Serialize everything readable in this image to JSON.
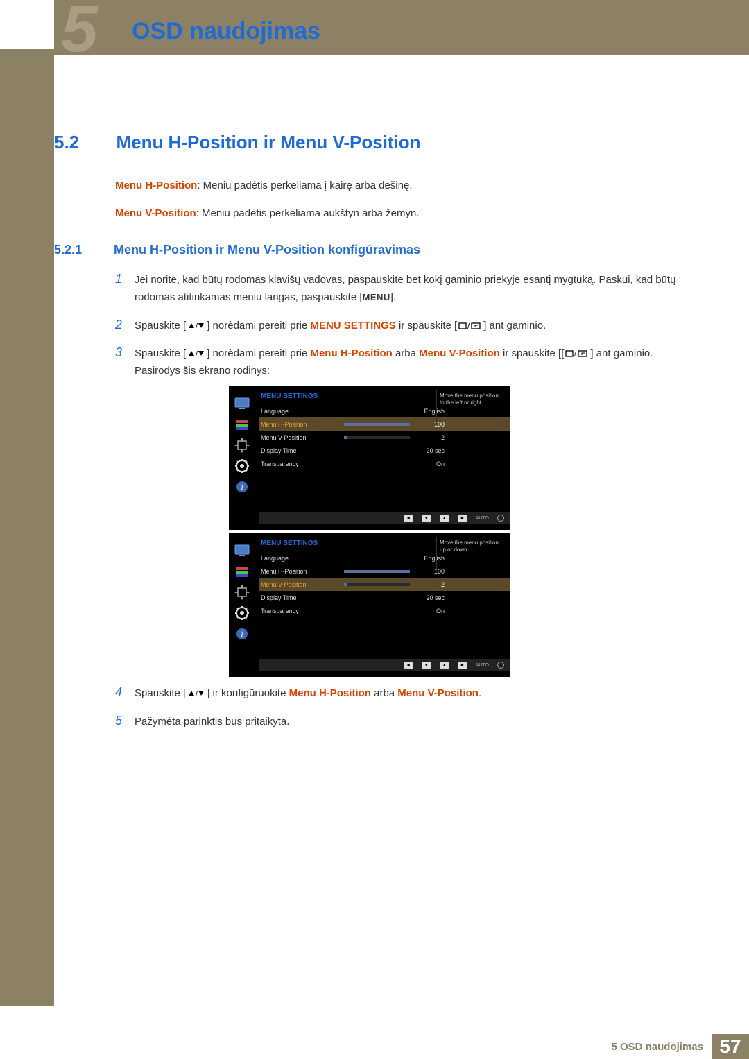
{
  "chapter": {
    "number": "5",
    "title": "OSD naudojimas"
  },
  "section": {
    "number": "5.2",
    "title": "Menu H-Position ir Menu V-Position"
  },
  "intro": {
    "hpos_label": "Menu H-Position",
    "hpos_text": ": Meniu padėtis perkeliama į kairę arba dešinę.",
    "vpos_label": "Menu V-Position",
    "vpos_text": ": Meniu padėtis perkeliama aukštyn arba žemyn."
  },
  "subsection": {
    "number": "5.2.1",
    "title": "Menu H-Position ir Menu V-Position konfigūravimas"
  },
  "steps": {
    "s1": {
      "n": "1",
      "a": "Jei norite, kad būtų rodomas klavišų vadovas, paspauskite bet kokį gaminio priekyje esantį mygtuką. Paskui, kad būtų rodomas atitinkamas meniu langas, paspauskite [",
      "menu": "MENU",
      "b": "]."
    },
    "s2": {
      "n": "2",
      "a": "Spauskite [",
      "b": "] norėdami pereiti prie ",
      "hl": "MENU SETTINGS",
      "c": " ir spauskite [",
      "d": "] ant gaminio."
    },
    "s3": {
      "n": "3",
      "a": "Spauskite [",
      "b": "] norėdami pereiti prie ",
      "hl1": "Menu H-Position",
      "mid": " arba ",
      "hl2": "Menu V-Position",
      "c": " ir spauskite [[",
      "d": "] ant gaminio. Pasirodys šis ekrano rodinys:"
    },
    "s4": {
      "n": "4",
      "a": "Spauskite [",
      "b": "] ir konfigūruokite ",
      "hl1": "Menu H-Position",
      "mid": " arba ",
      "hl2": "Menu V-Position",
      "c": "."
    },
    "s5": {
      "n": "5",
      "a": "Pažymėta parinktis bus pritaikyta."
    }
  },
  "osd1": {
    "header": "MENU SETTINGS",
    "tip": "Move the menu position to the left or right.",
    "rows": [
      {
        "label": "Language",
        "value": "English",
        "selected": false,
        "slider_pct": null
      },
      {
        "label": "Menu H-Position",
        "value": "100",
        "selected": true,
        "slider_pct": 100
      },
      {
        "label": "Menu V-Position",
        "value": "2",
        "selected": false,
        "slider_pct": 4
      },
      {
        "label": "Display Time",
        "value": "20 sec",
        "selected": false,
        "slider_pct": null
      },
      {
        "label": "Transparency",
        "value": "On",
        "selected": false,
        "slider_pct": null
      }
    ],
    "nav_auto": "AUTO"
  },
  "osd2": {
    "header": "MENU SETTINGS",
    "tip": "Move the menu position up or down.",
    "rows": [
      {
        "label": "Language",
        "value": "English",
        "selected": false,
        "slider_pct": null
      },
      {
        "label": "Menu H-Position",
        "value": "100",
        "selected": false,
        "slider_pct": 100
      },
      {
        "label": "Menu V-Position",
        "value": "2",
        "selected": true,
        "slider_pct": 4
      },
      {
        "label": "Display Time",
        "value": "20 sec",
        "selected": false,
        "slider_pct": null
      },
      {
        "label": "Transparency",
        "value": "On",
        "selected": false,
        "slider_pct": null
      }
    ],
    "nav_auto": "AUTO"
  },
  "footer": {
    "chapter_ref": "5 OSD naudojimas",
    "page": "57"
  },
  "colors": {
    "accent_blue": "#1e6bd6",
    "accent_orange": "#d64500",
    "bar": "#8c8165",
    "osd_selected_bg": "#5b4a2a",
    "osd_selected_text": "#e8a030"
  }
}
